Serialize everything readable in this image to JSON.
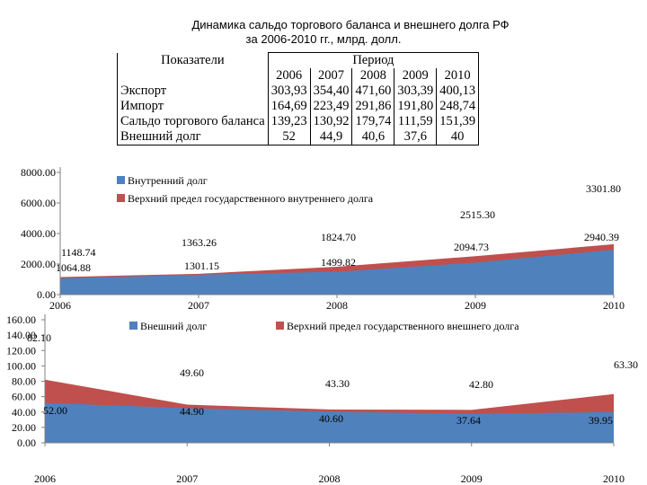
{
  "title_line1": "Динамика сальдо торгового баланса и внешнего долга РФ",
  "title_line2": "за 2006-2010 гг., млрд. долл.",
  "table": {
    "header_label": "Показатели",
    "header_period": "Период",
    "years": [
      "2006",
      "2007",
      "2008",
      "2009",
      "2010"
    ],
    "rows": [
      {
        "label": "Экспорт",
        "values": [
          "303,93",
          "354,40",
          "471,60",
          "303,39",
          "400,13"
        ]
      },
      {
        "label": "Импорт",
        "values": [
          "164,69",
          "223,49",
          "291,86",
          "191,80",
          "248,74"
        ]
      },
      {
        "label": "Сальдо торгового баланса",
        "values": [
          "139,23",
          "130,92",
          "179,74",
          "111,59",
          "151,39"
        ]
      },
      {
        "label": "Внешний долг",
        "values": [
          "52",
          "44,9",
          "40,6",
          "37,6",
          "40"
        ]
      }
    ]
  },
  "chart_data": [
    {
      "type": "area",
      "x": [
        "2006",
        "2007",
        "2008",
        "2009",
        "2010"
      ],
      "ylim": [
        0,
        8000
      ],
      "yticks": [
        "0.00",
        "2000.00",
        "4000.00",
        "6000.00",
        "8000.00"
      ],
      "series": [
        {
          "name": "Внутренний долг",
          "values": [
            1064.88,
            1301.15,
            1499.82,
            2094.73,
            2940.39
          ],
          "labels": [
            "1064.88",
            "1301.15",
            "1499.82",
            "2094.73",
            "2940.39"
          ],
          "color": "#4f81bd"
        },
        {
          "name": "Верхний предел государственного внутреннего долга",
          "values": [
            1148.74,
            1363.26,
            1824.7,
            2515.3,
            3301.8
          ],
          "labels": [
            "1148.74",
            "1363.26",
            "1824.70",
            "2515.30",
            "3301.80"
          ],
          "color": "#c0504d"
        }
      ]
    },
    {
      "type": "area",
      "x": [
        "2006",
        "2007",
        "2008",
        "2009",
        "2010"
      ],
      "ylim": [
        0,
        160
      ],
      "yticks": [
        "0.00",
        "20.00",
        "40.00",
        "60.00",
        "80.00",
        "100.00",
        "120.00",
        "140.00",
        "160.00"
      ],
      "series": [
        {
          "name": "Внешний долг",
          "values": [
            52.0,
            44.9,
            40.6,
            37.64,
            39.95
          ],
          "labels": [
            "52.00",
            "44.90",
            "40.60",
            "37.64",
            "39.95"
          ],
          "color": "#4f81bd"
        },
        {
          "name": "Верхний предел государственного внешнего долга",
          "values": [
            82.1,
            49.6,
            43.3,
            42.8,
            63.3
          ],
          "labels": [
            "82.10",
            "49.60",
            "43.30",
            "42.80",
            "63.30"
          ],
          "color": "#c0504d"
        }
      ]
    }
  ]
}
